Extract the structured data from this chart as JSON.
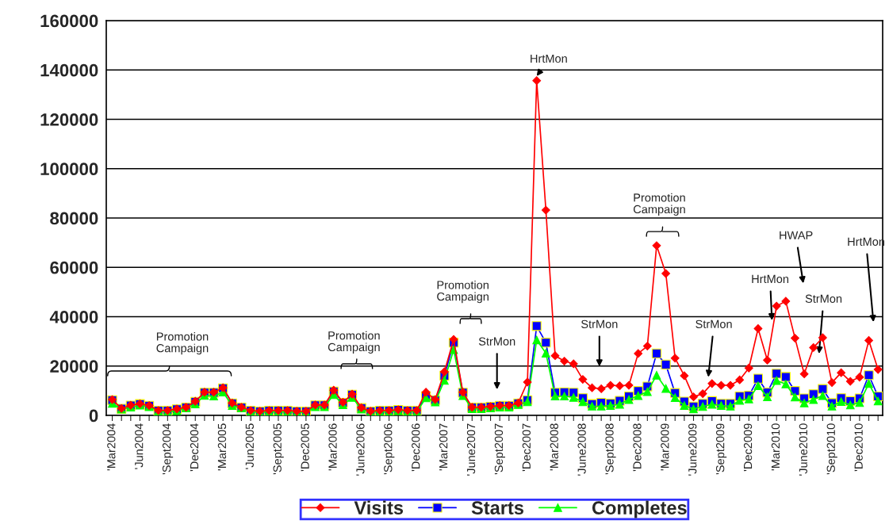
{
  "chart_data": {
    "type": "line",
    "categories": [
      "'Mar2004",
      null,
      null,
      "'Jun2004",
      null,
      null,
      "'Sept2004",
      null,
      null,
      "'Dec2004",
      null,
      null,
      "'Mar2005",
      null,
      null,
      "'Jun2005",
      null,
      null,
      "'Sept2005",
      null,
      null,
      "'Dec2005",
      null,
      null,
      "'Mar2006",
      null,
      null,
      "'June2006",
      null,
      null,
      "'Sept2006",
      null,
      null,
      "'Dec2006",
      null,
      null,
      "'Mar2007",
      null,
      null,
      "'June2007",
      null,
      null,
      "'Sept2007",
      null,
      null,
      "'Dec2007",
      null,
      null,
      "'Mar2008",
      null,
      null,
      "'June2008",
      null,
      null,
      "'Sept2008",
      null,
      null,
      "'Dec2008",
      null,
      null,
      "'Mar2009",
      null,
      null,
      "'June2009",
      null,
      null,
      "'Sept2009",
      null,
      null,
      "'Dec2009",
      null,
      null,
      "'Mar2010",
      null,
      null,
      "'June2010",
      null,
      null,
      "'Sept2010",
      null,
      null,
      "'Dec2010",
      null,
      null
    ],
    "series": [
      {
        "name": "Visits",
        "color": "#ff0000",
        "marker": "diamond",
        "values": [
          6400,
          2800,
          4100,
          4700,
          4000,
          2000,
          2000,
          2600,
          3300,
          5700,
          9400,
          9400,
          11200,
          5000,
          3300,
          2000,
          1700,
          2000,
          2000,
          2000,
          1700,
          1700,
          4200,
          4200,
          10200,
          5300,
          8600,
          3100,
          1700,
          2000,
          2000,
          2300,
          2000,
          2000,
          9400,
          6400,
          17700,
          30800,
          9400,
          3300,
          3300,
          3600,
          4000,
          4000,
          5000,
          13500,
          135700,
          83200,
          24200,
          22000,
          20900,
          14600,
          11200,
          10800,
          12200,
          12000,
          12200,
          25100,
          28100,
          68800,
          57500,
          23200,
          16100,
          7500,
          8800,
          12900,
          12200,
          12200,
          14400,
          19200,
          35200,
          22400,
          44300,
          46300,
          31300,
          16800,
          27500,
          31500,
          13300,
          17300,
          13800,
          15500,
          30400,
          18600
        ]
      },
      {
        "name": "Starts",
        "color": "#0000ff",
        "marker": "square",
        "values": [
          6200,
          2700,
          4000,
          4600,
          3900,
          1900,
          1900,
          2500,
          3200,
          5500,
          9200,
          9200,
          11000,
          4900,
          3200,
          1900,
          1600,
          1900,
          1900,
          1900,
          1600,
          1600,
          4100,
          4100,
          9700,
          5100,
          8400,
          3000,
          1600,
          1900,
          1900,
          2200,
          1900,
          1900,
          7800,
          6200,
          16100,
          29500,
          9200,
          3200,
          3200,
          3500,
          3900,
          3900,
          4900,
          6200,
          36200,
          29500,
          9200,
          9400,
          9200,
          7000,
          4600,
          5100,
          4800,
          5900,
          7700,
          9900,
          11700,
          25100,
          20600,
          9100,
          5600,
          3600,
          4700,
          5800,
          4700,
          4700,
          7700,
          8000,
          14900,
          9300,
          16900,
          15600,
          9900,
          6900,
          8600,
          10700,
          5000,
          7000,
          5800,
          6900,
          16300,
          7700
        ]
      },
      {
        "name": "Completes",
        "color": "#00ff00",
        "marker": "triangle",
        "values": [
          4900,
          2500,
          3300,
          4100,
          3500,
          1700,
          1400,
          1900,
          3000,
          4600,
          8100,
          7800,
          9400,
          4000,
          3000,
          1400,
          1200,
          1400,
          1400,
          1400,
          1200,
          1200,
          3500,
          3500,
          8400,
          4300,
          7300,
          2500,
          1400,
          1400,
          1400,
          1900,
          1600,
          1400,
          7100,
          5400,
          14200,
          26600,
          8000,
          2700,
          2700,
          3000,
          3300,
          3300,
          4400,
          5500,
          30600,
          25200,
          7800,
          7800,
          7300,
          5500,
          3700,
          3700,
          4000,
          4500,
          6400,
          8000,
          9600,
          16300,
          10900,
          7200,
          4000,
          2600,
          3600,
          4500,
          4000,
          3700,
          6100,
          6600,
          12000,
          7500,
          14100,
          12700,
          7400,
          5000,
          6400,
          8000,
          3700,
          5600,
          4200,
          5200,
          12900,
          5800
        ]
      }
    ],
    "ylim": [
      0,
      160000
    ],
    "yticks": [
      0,
      20000,
      40000,
      60000,
      80000,
      100000,
      120000,
      140000,
      160000
    ],
    "grid": "y",
    "legend": "bottom",
    "annotations": [
      "Promotion\nCampaign",
      "Promotion\nCampaign",
      "Promotion\nCampaign",
      "StrMon",
      "HrtMon",
      "Promotion\nCampaign",
      "StrMon",
      "StrMon",
      {
        "text": "HrtMon",
        "y": 38500
      },
      "HWAP",
      "StrMon",
      "HrtMon"
    ]
  }
}
